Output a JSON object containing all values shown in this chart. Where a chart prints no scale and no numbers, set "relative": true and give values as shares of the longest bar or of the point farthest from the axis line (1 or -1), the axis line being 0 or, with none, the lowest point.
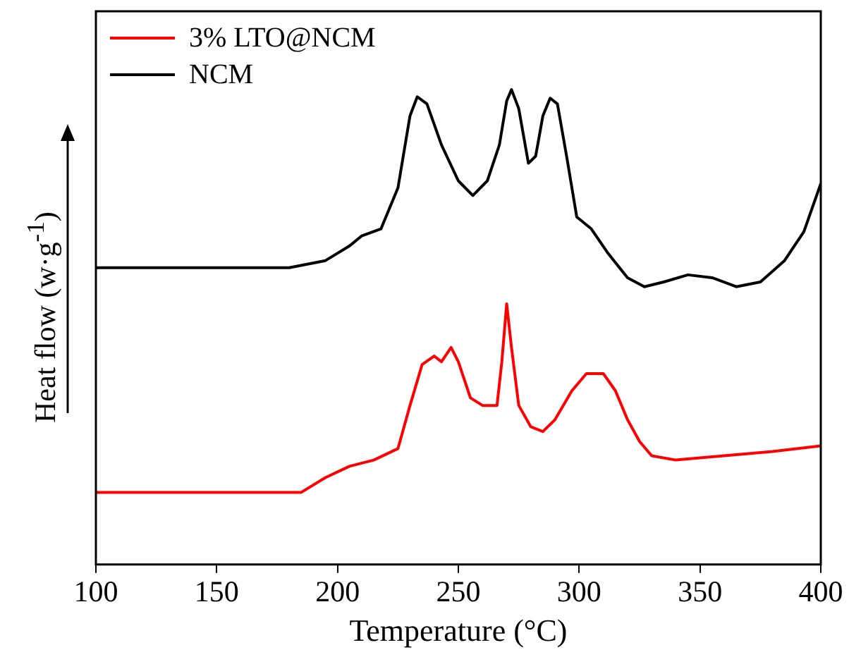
{
  "chart_data": {
    "type": "line",
    "xlabel": "Temperature (°C)",
    "ylabel": "Heat flow (w·g$^{-1}$)",
    "relative": true,
    "xlim": [
      100,
      400
    ],
    "xticks": [
      100,
      150,
      200,
      250,
      300,
      350,
      400
    ],
    "grid": false,
    "legend": "top left",
    "marker": "none",
    "line_style": "solid",
    "series": [
      {
        "name": "3% LTO@NCM",
        "color": "#ff0000",
        "x": [
          100,
          185,
          195,
          205,
          215,
          225,
          230,
          235,
          240,
          243,
          247,
          250,
          255,
          260,
          266,
          268,
          270,
          272,
          275,
          280,
          285,
          290,
          297,
          303,
          310,
          315,
          320,
          325,
          330,
          340,
          360,
          380,
          400
        ],
        "values": [
          0.152,
          0.152,
          0.183,
          0.207,
          0.22,
          0.244,
          0.335,
          0.421,
          0.439,
          0.427,
          0.457,
          0.427,
          0.351,
          0.335,
          0.335,
          0.427,
          0.549,
          0.457,
          0.335,
          0.29,
          0.28,
          0.305,
          0.366,
          0.402,
          0.402,
          0.366,
          0.305,
          0.259,
          0.229,
          0.22,
          0.229,
          0.238,
          0.25
        ]
      },
      {
        "name": "NCM",
        "color": "#000000",
        "x": [
          100,
          180,
          195,
          205,
          210,
          218,
          225,
          230,
          233,
          237,
          243,
          250,
          256,
          262,
          267,
          270,
          272,
          275,
          279,
          282,
          285,
          288,
          291,
          295,
          299,
          305,
          312,
          320,
          327,
          335,
          345,
          355,
          365,
          375,
          385,
          393,
          400
        ],
        "values": [
          0.625,
          0.625,
          0.64,
          0.671,
          0.692,
          0.707,
          0.793,
          0.945,
          0.985,
          0.97,
          0.884,
          0.808,
          0.777,
          0.808,
          0.884,
          0.976,
          1,
          0.96,
          0.845,
          0.86,
          0.945,
          0.982,
          0.97,
          0.854,
          0.732,
          0.707,
          0.655,
          0.604,
          0.585,
          0.595,
          0.61,
          0.604,
          0.585,
          0.595,
          0.64,
          0.701,
          0.802
        ]
      }
    ]
  }
}
